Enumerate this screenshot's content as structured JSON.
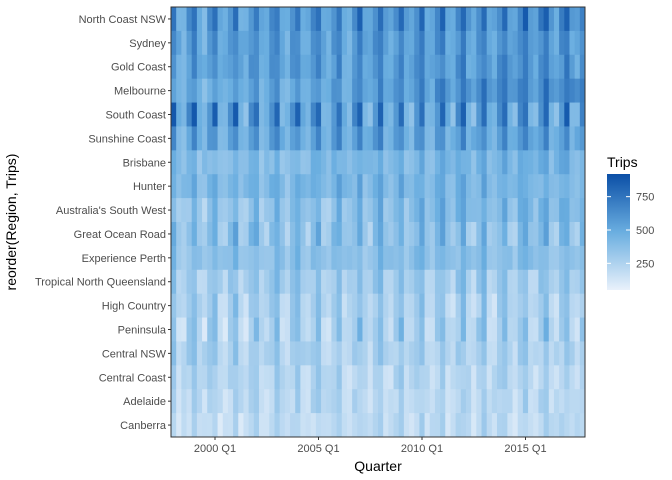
{
  "chart_data": {
    "type": "heatmap",
    "xlabel": "Quarter",
    "ylabel": "reorder(Region, Trips)",
    "x_start": "1998 Q1",
    "x_end": "2017 Q4",
    "x_ticks": [
      "2000 Q1",
      "2005 Q1",
      "2010 Q1",
      "2015 Q1"
    ],
    "regions": [
      {
        "name": "North Coast NSW",
        "mean": 600,
        "amp": 190,
        "trend": 120
      },
      {
        "name": "Sydney",
        "mean": 560,
        "amp": 130,
        "trend": 60
      },
      {
        "name": "Gold Coast",
        "mean": 560,
        "amp": 120,
        "trend": 50
      },
      {
        "name": "Melbourne",
        "mean": 560,
        "amp": 110,
        "trend": 220
      },
      {
        "name": "South Coast",
        "mean": 560,
        "amp": 260,
        "trend": 0
      },
      {
        "name": "Sunshine Coast",
        "mean": 520,
        "amp": 130,
        "trend": 40
      },
      {
        "name": "Brisbane",
        "mean": 420,
        "amp": 60,
        "trend": 60
      },
      {
        "name": "Hunter",
        "mean": 420,
        "amp": 80,
        "trend": 0
      },
      {
        "name": "Australia's South West",
        "mean": 380,
        "amp": 110,
        "trend": 140
      },
      {
        "name": "Great Ocean Road",
        "mean": 370,
        "amp": 150,
        "trend": 30
      },
      {
        "name": "Experience Perth",
        "mean": 370,
        "amp": 60,
        "trend": 30
      },
      {
        "name": "Tropical North Queensland",
        "mean": 290,
        "amp": 100,
        "trend": 10
      },
      {
        "name": "High Country",
        "mean": 260,
        "amp": 120,
        "trend": -20
      },
      {
        "name": "Peninsula",
        "mean": 260,
        "amp": 160,
        "trend": 20
      },
      {
        "name": "Central NSW",
        "mean": 260,
        "amp": 70,
        "trend": -10
      },
      {
        "name": "Central Coast",
        "mean": 230,
        "amp": 70,
        "trend": 0
      },
      {
        "name": "Adelaide",
        "mean": 210,
        "amp": 60,
        "trend": 20
      },
      {
        "name": "Canberra",
        "mean": 190,
        "amp": 60,
        "trend": 40
      }
    ],
    "legend": {
      "title": "Trips",
      "min": 50,
      "max": 920,
      "ticks": [
        250,
        500,
        750
      ]
    },
    "color_scale": {
      "low": "#e9f1fb",
      "mid": "#6aaee0",
      "high": "#0b4fa6"
    }
  }
}
